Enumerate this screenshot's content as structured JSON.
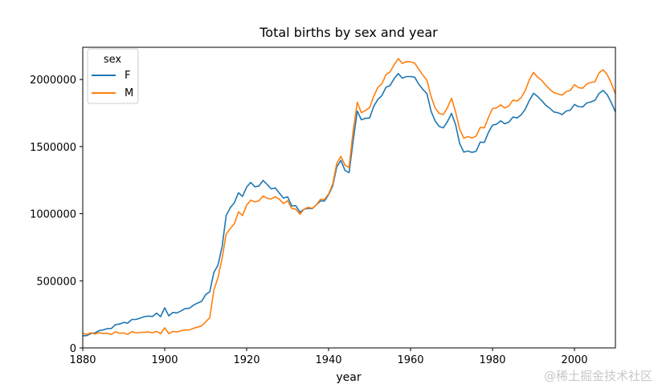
{
  "chart_data": {
    "type": "line",
    "title": "Total births by sex and year",
    "xlabel": "year",
    "ylabel": "",
    "xlim": [
      1880,
      2010
    ],
    "ylim": [
      0,
      2240000
    ],
    "xticks": [
      1880,
      1900,
      1920,
      1940,
      1960,
      1980,
      2000
    ],
    "yticks": [
      0,
      500000,
      1000000,
      1500000,
      2000000
    ],
    "grid": false,
    "legend": {
      "title": "sex",
      "placement": "top-left"
    },
    "x": [
      1880,
      1881,
      1882,
      1883,
      1884,
      1885,
      1886,
      1887,
      1888,
      1889,
      1890,
      1891,
      1892,
      1893,
      1894,
      1895,
      1896,
      1897,
      1898,
      1899,
      1900,
      1901,
      1902,
      1903,
      1904,
      1905,
      1906,
      1907,
      1908,
      1909,
      1910,
      1911,
      1912,
      1913,
      1914,
      1915,
      1916,
      1917,
      1918,
      1919,
      1920,
      1921,
      1922,
      1923,
      1924,
      1925,
      1926,
      1927,
      1928,
      1929,
      1930,
      1931,
      1932,
      1933,
      1934,
      1935,
      1936,
      1937,
      1938,
      1939,
      1940,
      1941,
      1942,
      1943,
      1944,
      1945,
      1946,
      1947,
      1948,
      1949,
      1950,
      1951,
      1952,
      1953,
      1954,
      1955,
      1956,
      1957,
      1958,
      1959,
      1960,
      1961,
      1962,
      1963,
      1964,
      1965,
      1966,
      1967,
      1968,
      1969,
      1970,
      1971,
      1972,
      1973,
      1974,
      1975,
      1976,
      1977,
      1978,
      1979,
      1980,
      1981,
      1982,
      1983,
      1984,
      1985,
      1986,
      1987,
      1988,
      1989,
      1990,
      1991,
      1992,
      1993,
      1994,
      1995,
      1996,
      1997,
      1998,
      1999,
      2000,
      2001,
      2002,
      2003,
      2004,
      2005,
      2006,
      2007,
      2008,
      2009,
      2010
    ],
    "series": [
      {
        "name": "F",
        "color": "#1f77b4",
        "values": [
          90000,
          92000,
          107000,
          112000,
          129000,
          134000,
          144000,
          145000,
          174000,
          178000,
          190000,
          185000,
          212000,
          212000,
          222000,
          233000,
          237000,
          234000,
          259000,
          233000,
          299000,
          239000,
          264000,
          261000,
          276000,
          293000,
          295000,
          318000,
          334000,
          347000,
          397000,
          419000,
          562000,
          617000,
          752000,
          986000,
          1045000,
          1082000,
          1156000,
          1129000,
          1199000,
          1233000,
          1201000,
          1206000,
          1248000,
          1218000,
          1185000,
          1192000,
          1153000,
          1116000,
          1126000,
          1058000,
          1060000,
          1011000,
          1033000,
          1040000,
          1038000,
          1065000,
          1095000,
          1095000,
          1142000,
          1207000,
          1349000,
          1398000,
          1323000,
          1306000,
          1545000,
          1765000,
          1700000,
          1711000,
          1713000,
          1799000,
          1851000,
          1880000,
          1942000,
          1955000,
          2007000,
          2044000,
          2010000,
          2022000,
          2022000,
          2017000,
          1966000,
          1927000,
          1894000,
          1765000,
          1691000,
          1650000,
          1640000,
          1686000,
          1748000,
          1663000,
          1522000,
          1459000,
          1467000,
          1457000,
          1465000,
          1533000,
          1531000,
          1605000,
          1660000,
          1667000,
          1692000,
          1670000,
          1683000,
          1720000,
          1714000,
          1737000,
          1779000,
          1844000,
          1897000,
          1874000,
          1843000,
          1808000,
          1785000,
          1758000,
          1752000,
          1739000,
          1765000,
          1772000,
          1814000,
          1798000,
          1795000,
          1825000,
          1833000,
          1845000,
          1896000,
          1919000,
          1887000,
          1827000,
          1759000
        ]
      },
      {
        "name": "M",
        "color": "#ff7f0e",
        "values": [
          110000,
          101000,
          113000,
          104000,
          114000,
          107000,
          110000,
          101000,
          120000,
          110000,
          111000,
          101000,
          122000,
          112000,
          115000,
          117000,
          119000,
          112000,
          123000,
          106000,
          150000,
          106000,
          123000,
          119000,
          128000,
          133000,
          134000,
          146000,
          155000,
          163000,
          194000,
          226000,
          430000,
          524000,
          667000,
          848000,
          890000,
          925000,
          1014000,
          986000,
          1065000,
          1101000,
          1088000,
          1096000,
          1132000,
          1115000,
          1110000,
          1127000,
          1107000,
          1075000,
          1097000,
          1039000,
          1034000,
          995000,
          1033000,
          1048000,
          1040000,
          1065000,
          1107000,
          1107000,
          1147000,
          1221000,
          1376000,
          1428000,
          1362000,
          1345000,
          1620000,
          1830000,
          1753000,
          1770000,
          1790000,
          1874000,
          1940000,
          1968000,
          2036000,
          2057000,
          2109000,
          2156000,
          2120000,
          2133000,
          2132000,
          2123000,
          2077000,
          2033000,
          1994000,
          1874000,
          1788000,
          1747000,
          1739000,
          1790000,
          1860000,
          1758000,
          1629000,
          1563000,
          1575000,
          1564000,
          1578000,
          1642000,
          1640000,
          1716000,
          1783000,
          1789000,
          1811000,
          1788000,
          1803000,
          1847000,
          1839000,
          1865000,
          1918000,
          1998000,
          2053000,
          2018000,
          1994000,
          1958000,
          1926000,
          1902000,
          1893000,
          1884000,
          1910000,
          1919000,
          1962000,
          1939000,
          1935000,
          1967000,
          1978000,
          1983000,
          2050000,
          2073000,
          2036000,
          1972000,
          1893000
        ]
      }
    ]
  },
  "watermark": "@稀土掘金技术社区"
}
